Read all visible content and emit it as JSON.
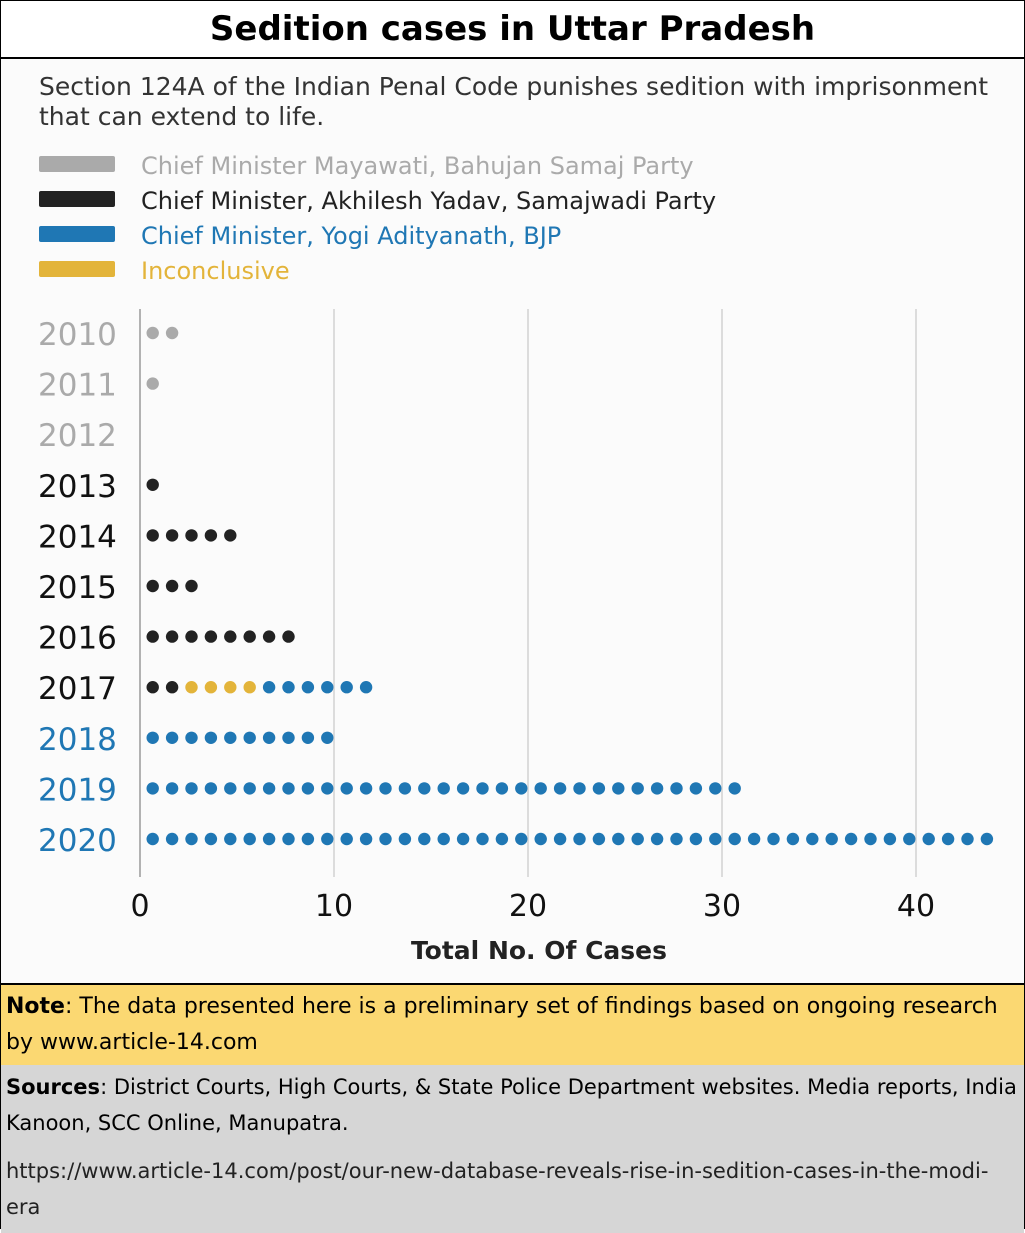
{
  "title": "Sedition cases in Uttar Pradesh",
  "subtitle": "Section 124A of the Indian Penal Code punishes sedition with imprisonment that can extend to life.",
  "colors": {
    "mayawati": "#aaaaaa",
    "akhilesh": "#222222",
    "yogi": "#1f77b4",
    "inconclusive": "#e3b43a"
  },
  "chart_data": {
    "type": "dot",
    "title": "Sedition cases in Uttar Pradesh",
    "xlabel": "Total No. Of Cases",
    "ylabel": "",
    "xlim": [
      0,
      43
    ],
    "xticks": [
      0,
      10,
      20,
      30,
      40
    ],
    "legend": [
      {
        "key": "mayawati",
        "label": "Chief Minister Mayawati, Bahujan Samaj Party"
      },
      {
        "key": "akhilesh",
        "label": "Chief Minister, Akhilesh Yadav, Samajwadi Party"
      },
      {
        "key": "yogi",
        "label": "Chief Minister, Yogi Adityanath, BJP"
      },
      {
        "key": "inconclusive",
        "label": "Inconclusive"
      }
    ],
    "rows": [
      {
        "year": "2010",
        "label_key": "mayawati",
        "segments": [
          {
            "key": "mayawati",
            "count": 2
          }
        ]
      },
      {
        "year": "2011",
        "label_key": "mayawati",
        "segments": [
          {
            "key": "mayawati",
            "count": 1
          }
        ]
      },
      {
        "year": "2012",
        "label_key": "mayawati",
        "segments": []
      },
      {
        "year": "2013",
        "label_key": "akhilesh",
        "segments": [
          {
            "key": "akhilesh",
            "count": 1
          }
        ]
      },
      {
        "year": "2014",
        "label_key": "akhilesh",
        "segments": [
          {
            "key": "akhilesh",
            "count": 5
          }
        ]
      },
      {
        "year": "2015",
        "label_key": "akhilesh",
        "segments": [
          {
            "key": "akhilesh",
            "count": 3
          }
        ]
      },
      {
        "year": "2016",
        "label_key": "akhilesh",
        "segments": [
          {
            "key": "akhilesh",
            "count": 8
          }
        ]
      },
      {
        "year": "2017",
        "label_key": "akhilesh",
        "segments": [
          {
            "key": "akhilesh",
            "count": 2
          },
          {
            "key": "inconclusive",
            "count": 4
          },
          {
            "key": "yogi",
            "count": 6
          }
        ]
      },
      {
        "year": "2018",
        "label_key": "yogi",
        "segments": [
          {
            "key": "yogi",
            "count": 10
          }
        ]
      },
      {
        "year": "2019",
        "label_key": "yogi",
        "segments": [
          {
            "key": "yogi",
            "count": 31
          }
        ]
      },
      {
        "year": "2020",
        "label_key": "yogi",
        "segments": [
          {
            "key": "yogi",
            "count": 44
          }
        ]
      }
    ]
  },
  "note": {
    "label": "Note",
    "text": ": The data presented here is a preliminary set of findings based on ongoing research by www.article-14.com"
  },
  "sources": {
    "label": "Sources",
    "text": ": District Courts, High Courts, & State Police Department websites. Media reports, India Kanoon, SCC Online, Manupatra."
  },
  "url": "https://www.article-14.com/post/our-new-database-reveals-rise-in-sedition-cases-in-the-modi-era"
}
